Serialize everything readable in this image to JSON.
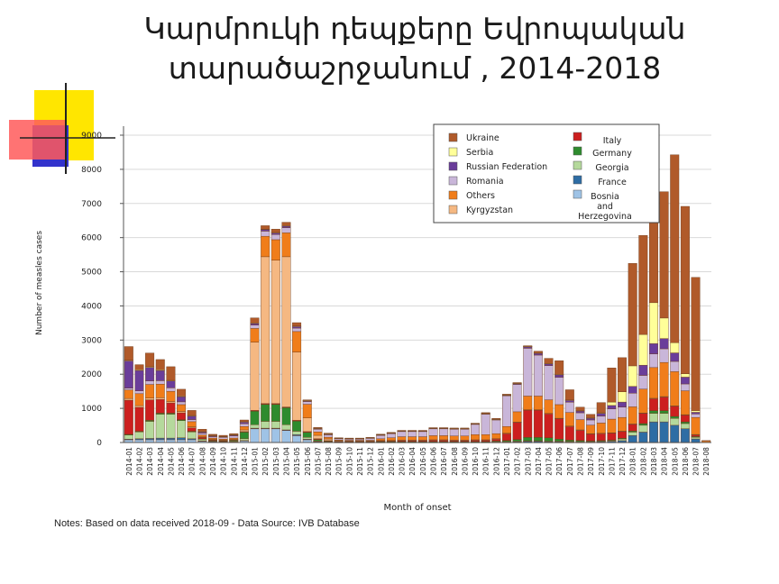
{
  "title": {
    "line1": "Կարմրուկի դեպքերը Եվրոպական",
    "line2": "տարածաշրջանում   , 2014-2018"
  },
  "notes": "Notes: Based on data received 2018-09 - Data Source: IVB Database",
  "chart_data": {
    "type": "bar",
    "stacked": true,
    "xlabel": "Month of onset",
    "ylabel": "Number of measles cases",
    "ylim": [
      0,
      9000
    ],
    "yticks": [
      "0",
      "1000",
      "2000",
      "3000",
      "4000",
      "5000",
      "6000",
      "7000",
      "8000",
      "9000"
    ],
    "grid": true,
    "legend_position": "top-right",
    "categories": [
      "2014-01",
      "2014-02",
      "2014-03",
      "2014-04",
      "2014-05",
      "2014-06",
      "2014-07",
      "2014-08",
      "2014-09",
      "2014-10",
      "2014-11",
      "2014-12",
      "2015-01",
      "2015-02",
      "2015-03",
      "2015-04",
      "2015-05",
      "2015-06",
      "2015-07",
      "2015-08",
      "2015-09",
      "2015-10",
      "2015-11",
      "2015-12",
      "2016-01",
      "2016-02",
      "2016-03",
      "2016-04",
      "2016-05",
      "2016-06",
      "2016-07",
      "2016-08",
      "2016-09",
      "2016-10",
      "2016-11",
      "2016-12",
      "2017-01",
      "2017-02",
      "2017-03",
      "2017-04",
      "2017-05",
      "2017-06",
      "2017-07",
      "2017-08",
      "2017-09",
      "2017-10",
      "2017-11",
      "2017-12",
      "2018-01",
      "2018-02",
      "2018-03",
      "2018-04",
      "2018-05",
      "2018-06",
      "2018-07",
      "2018-08"
    ],
    "series": [
      {
        "name": "Bosnia and Herzegovina",
        "color": "#9fc3e6",
        "values": [
          80,
          80,
          80,
          80,
          80,
          80,
          80,
          40,
          20,
          10,
          10,
          50,
          400,
          400,
          400,
          350,
          200,
          80,
          20,
          10,
          5,
          5,
          5,
          5,
          5,
          5,
          5,
          5,
          5,
          5,
          5,
          5,
          5,
          5,
          5,
          5,
          5,
          5,
          5,
          5,
          5,
          5,
          5,
          5,
          5,
          5,
          5,
          5,
          5,
          5,
          5,
          5,
          5,
          5,
          5,
          0
        ]
      },
      {
        "name": "France",
        "color": "#2e6da4",
        "values": [
          20,
          30,
          40,
          50,
          50,
          60,
          30,
          10,
          10,
          10,
          10,
          10,
          20,
          20,
          20,
          20,
          30,
          20,
          10,
          5,
          5,
          5,
          5,
          5,
          10,
          10,
          10,
          10,
          10,
          10,
          10,
          10,
          10,
          10,
          10,
          20,
          20,
          30,
          40,
          40,
          30,
          30,
          20,
          20,
          20,
          30,
          30,
          50,
          200,
          300,
          600,
          600,
          500,
          400,
          100,
          0
        ]
      },
      {
        "name": "Georgia",
        "color": "#b5d99c",
        "values": [
          120,
          200,
          500,
          700,
          700,
          500,
          200,
          50,
          20,
          20,
          20,
          50,
          100,
          200,
          200,
          150,
          100,
          50,
          20,
          10,
          5,
          5,
          5,
          5,
          5,
          5,
          5,
          5,
          5,
          5,
          5,
          5,
          5,
          5,
          5,
          5,
          5,
          5,
          5,
          5,
          5,
          5,
          5,
          5,
          5,
          5,
          20,
          50,
          100,
          200,
          250,
          250,
          200,
          150,
          50,
          0
        ]
      },
      {
        "name": "Germany",
        "color": "#2e8b2e",
        "values": [
          20,
          20,
          30,
          30,
          30,
          30,
          20,
          10,
          10,
          10,
          30,
          200,
          400,
          500,
          500,
          500,
          300,
          150,
          40,
          20,
          10,
          10,
          10,
          10,
          10,
          10,
          10,
          10,
          10,
          10,
          10,
          10,
          10,
          10,
          10,
          20,
          30,
          50,
          100,
          100,
          100,
          60,
          40,
          30,
          20,
          20,
          20,
          20,
          30,
          50,
          80,
          80,
          60,
          50,
          20,
          0
        ]
      },
      {
        "name": "Italy",
        "color": "#cc1f1f",
        "values": [
          1000,
          700,
          600,
          400,
          300,
          200,
          100,
          40,
          20,
          10,
          10,
          10,
          20,
          20,
          20,
          20,
          20,
          20,
          20,
          10,
          10,
          10,
          10,
          10,
          20,
          20,
          30,
          30,
          30,
          40,
          40,
          30,
          30,
          40,
          40,
          50,
          200,
          500,
          800,
          800,
          700,
          600,
          400,
          300,
          200,
          200,
          200,
          200,
          200,
          300,
          350,
          400,
          300,
          200,
          50,
          0
        ]
      },
      {
        "name": "Kyrgyzstan",
        "color": "#f5b882",
        "values": [
          50,
          50,
          50,
          50,
          40,
          40,
          30,
          20,
          10,
          10,
          10,
          50,
          2000,
          4300,
          4200,
          4400,
          2000,
          400,
          100,
          50,
          20,
          10,
          10,
          10,
          10,
          10,
          10,
          10,
          10,
          10,
          10,
          10,
          10,
          10,
          10,
          10,
          10,
          10,
          10,
          10,
          10,
          10,
          10,
          10,
          10,
          10,
          10,
          10,
          10,
          10,
          10,
          10,
          10,
          10,
          10,
          0
        ]
      },
      {
        "name": "Others",
        "color": "#f07d1a",
        "values": [
          250,
          350,
          400,
          400,
          300,
          200,
          150,
          50,
          40,
          30,
          40,
          100,
          400,
          600,
          600,
          700,
          600,
          400,
          100,
          50,
          20,
          20,
          20,
          20,
          50,
          80,
          100,
          100,
          100,
          120,
          120,
          120,
          120,
          150,
          150,
          150,
          200,
          300,
          400,
          400,
          400,
          400,
          400,
          300,
          250,
          300,
          400,
          400,
          500,
          700,
          900,
          1000,
          1000,
          700,
          500,
          50
        ]
      },
      {
        "name": "Romania",
        "color": "#c9b6d9",
        "values": [
          50,
          80,
          100,
          100,
          100,
          80,
          60,
          50,
          40,
          50,
          60,
          80,
          100,
          150,
          150,
          150,
          100,
          80,
          80,
          70,
          40,
          40,
          40,
          60,
          100,
          120,
          150,
          150,
          150,
          200,
          200,
          200,
          200,
          300,
          600,
          400,
          900,
          800,
          1400,
          1200,
          1000,
          800,
          300,
          200,
          150,
          200,
          300,
          300,
          400,
          400,
          400,
          400,
          300,
          200,
          100,
          10
        ]
      },
      {
        "name": "Russian Federation",
        "color": "#6a3d9a",
        "values": [
          800,
          600,
          400,
          300,
          200,
          150,
          100,
          40,
          30,
          20,
          30,
          50,
          50,
          50,
          50,
          50,
          50,
          20,
          20,
          20,
          10,
          10,
          10,
          10,
          20,
          20,
          20,
          20,
          20,
          20,
          20,
          20,
          20,
          20,
          20,
          20,
          20,
          30,
          50,
          60,
          60,
          80,
          60,
          60,
          60,
          80,
          100,
          150,
          200,
          300,
          300,
          300,
          250,
          200,
          50,
          0
        ]
      },
      {
        "name": "Serbia",
        "color": "#ffff99",
        "values": [
          20,
          20,
          20,
          20,
          20,
          20,
          20,
          10,
          10,
          10,
          10,
          10,
          10,
          10,
          10,
          10,
          10,
          10,
          10,
          10,
          5,
          5,
          5,
          5,
          5,
          5,
          5,
          5,
          5,
          5,
          5,
          5,
          5,
          5,
          5,
          5,
          5,
          5,
          5,
          5,
          5,
          5,
          5,
          5,
          5,
          20,
          100,
          300,
          600,
          900,
          1200,
          600,
          300,
          100,
          50,
          0
        ]
      },
      {
        "name": "Ukraine",
        "color": "#b05a2a",
        "values": [
          400,
          150,
          400,
          300,
          400,
          200,
          150,
          70,
          30,
          30,
          30,
          50,
          150,
          100,
          100,
          100,
          100,
          20,
          20,
          20,
          10,
          10,
          10,
          10,
          10,
          10,
          10,
          10,
          10,
          10,
          10,
          10,
          10,
          10,
          20,
          20,
          20,
          20,
          20,
          50,
          150,
          400,
          300,
          100,
          100,
          300,
          1000,
          1000,
          3000,
          2900,
          2500,
          3700,
          5500,
          4900,
          3900,
          0
        ]
      }
    ],
    "legend_left": [
      {
        "label": "Ukraine",
        "color": "#b05a2a"
      },
      {
        "label": "Serbia",
        "color": "#ffff99"
      },
      {
        "label": "Russian Federation",
        "color": "#6a3d9a"
      },
      {
        "label": "Romania",
        "color": "#c9b6d9"
      },
      {
        "label": "Others",
        "color": "#f07d1a"
      },
      {
        "label": "Kyrgyzstan",
        "color": "#f5b882"
      }
    ],
    "legend_right": [
      {
        "label": "Italy",
        "color": "#cc1f1f"
      },
      {
        "label": "Germany",
        "color": "#2e8b2e"
      },
      {
        "label": "Georgia",
        "color": "#b5d99c"
      },
      {
        "label": "France",
        "color": "#2e6da4"
      },
      {
        "label": "Bosnia and Herzegovina",
        "color": "#9fc3e6"
      }
    ]
  }
}
